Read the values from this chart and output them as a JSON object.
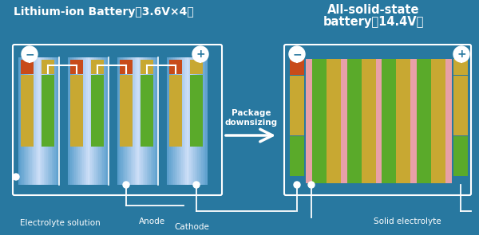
{
  "bg_color": "#2878a0",
  "title_left": "Lithium-ion Battery〈3.6V×4〉",
  "title_right_1": "All-solid-state",
  "title_right_2": "battery〈14.4V〉",
  "label_electrolyte": "Electrolyte solution",
  "label_anode": "Anode",
  "label_cathode": "Cathode",
  "label_solid": "Solid electrolyte",
  "label_package": "Package\ndownsizing",
  "color_orange": "#c84b1a",
  "color_yellow": "#c8a832",
  "color_green": "#5aaa2a",
  "color_pink": "#e8a0a8",
  "color_white": "#ffffff",
  "color_lb_dark": "#6aaed0",
  "color_lb_light": "#c8e8f8",
  "color_lb_mid": "#90c8e8"
}
